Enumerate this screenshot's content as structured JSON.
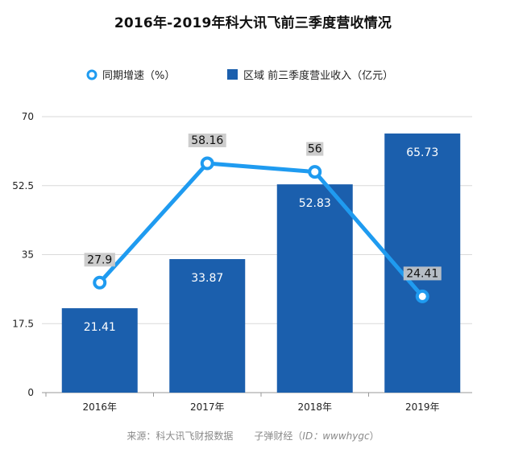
{
  "title": "2016年-2019年科大讯飞前三季度营收情况",
  "source": {
    "prefix": "来源：科大讯飞财报数据",
    "brand": "子弹财经（",
    "id": "ID：wwwhygc",
    "suffix": "）"
  },
  "chart_data": {
    "type": "bar",
    "title": "2016年-2019年科大讯飞前三季度营收情况",
    "categories": [
      "2016年",
      "2017年",
      "2018年",
      "2019年"
    ],
    "series": [
      {
        "name": "区域 前三季度营业收入（亿元）",
        "type": "bar",
        "values": [
          21.41,
          33.87,
          52.83,
          65.73
        ]
      },
      {
        "name": "同期增速（%）",
        "type": "line",
        "values": [
          27.9,
          58.16,
          56,
          24.41
        ]
      }
    ],
    "data_labels": {
      "bar": [
        "21.41",
        "33.87",
        "52.83",
        "65.73"
      ],
      "line": [
        "27.9",
        "58.16",
        "56",
        "24.41"
      ]
    },
    "yticks": [
      "0",
      "17.5",
      "35",
      "52.5",
      "70"
    ],
    "ylim": [
      0,
      70
    ],
    "grid": true,
    "legend_position": "top",
    "colors": {
      "bar": "#1b5fad",
      "line": "#1f9bf0",
      "grid": "#d9d9d9",
      "label_bg": "#c8c8c8"
    }
  }
}
